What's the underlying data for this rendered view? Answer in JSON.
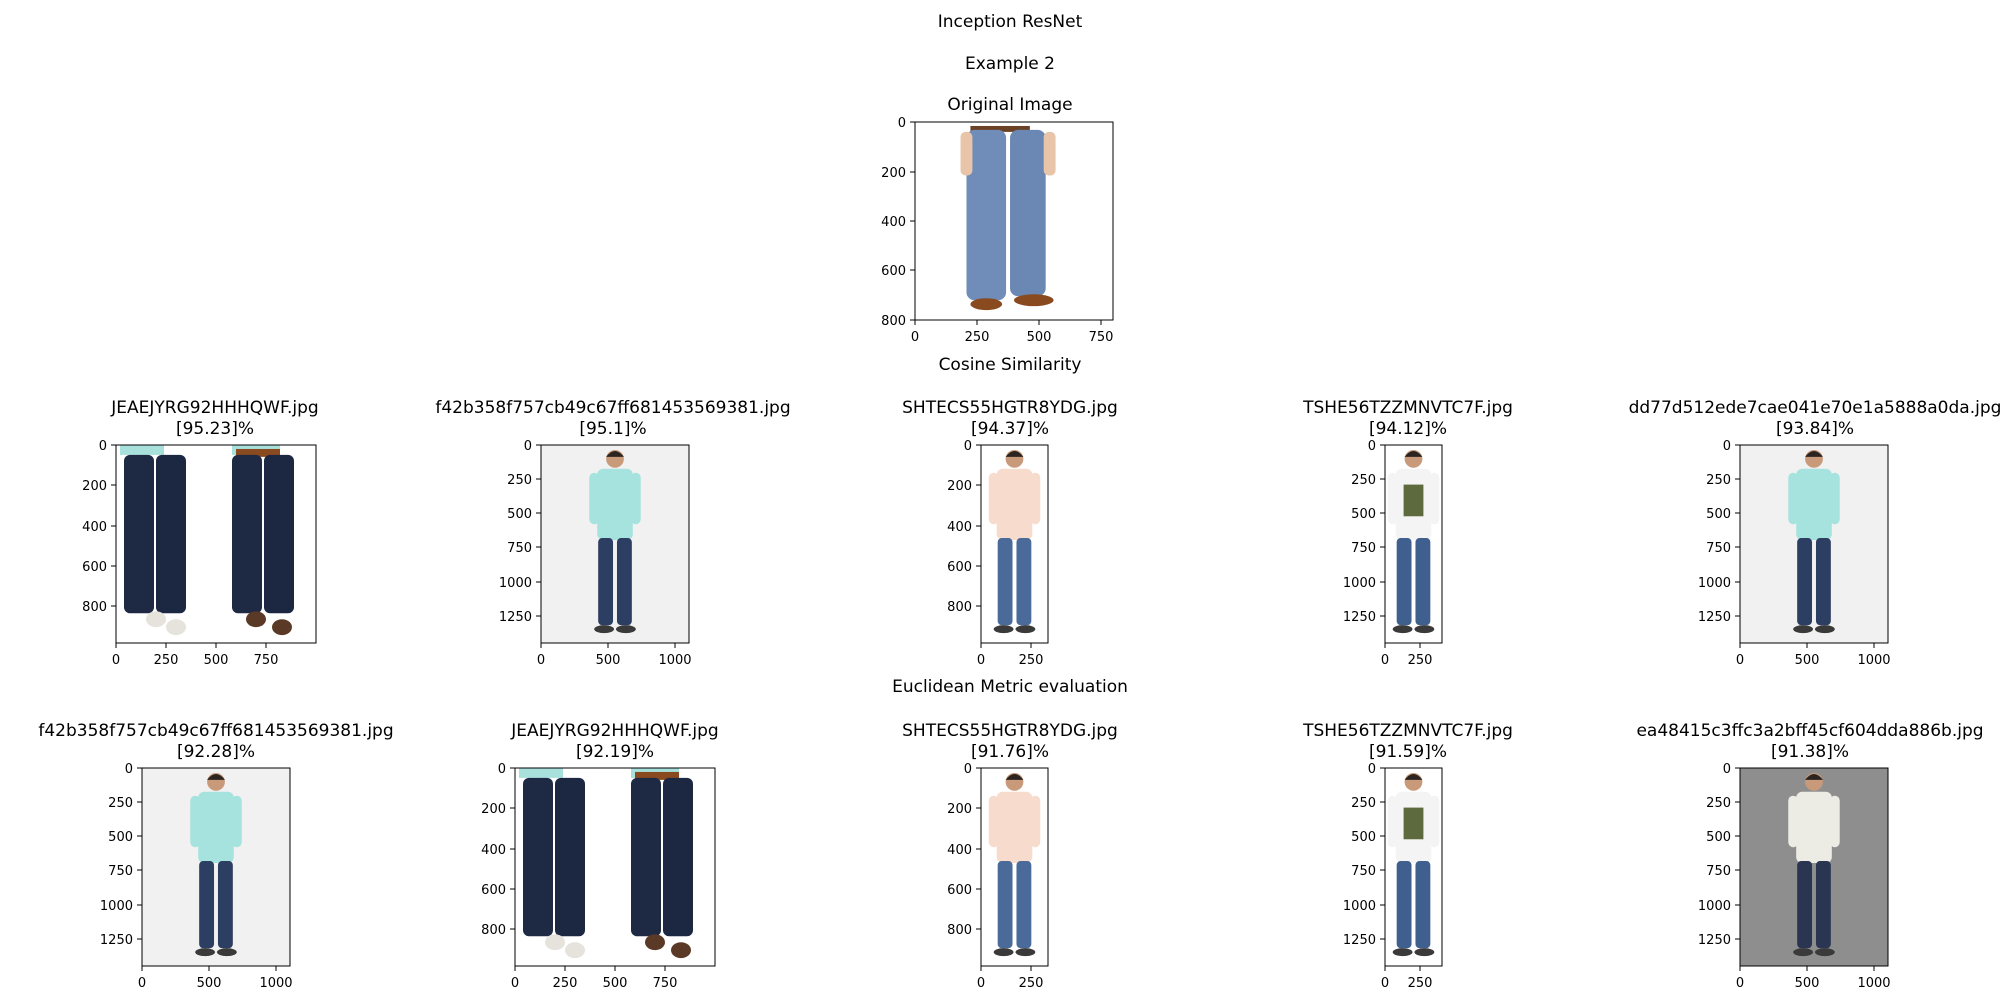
{
  "figure": {
    "suptitle": "Inception ResNet",
    "example_label": "Example 2",
    "cosine_label": "Cosine Similarity",
    "euclidean_label": "Euclidean Metric evaluation"
  },
  "original": {
    "title": "Original Image",
    "xticks": [
      "0",
      "250",
      "500",
      "750"
    ],
    "yticks": [
      "0",
      "200",
      "400",
      "600",
      "800"
    ],
    "picture": "person-blue-trousers-brown-shoes"
  },
  "cosine_results": [
    {
      "file": "JEAEJYRG92HHHQWF.jpg",
      "score": "[95.23]%",
      "xticks": [
        "0",
        "250",
        "500",
        "750"
      ],
      "yticks": [
        "0",
        "200",
        "400",
        "600",
        "800"
      ],
      "picture": "two-people-dark-jeans"
    },
    {
      "file": "f42b358f757cb49c67ff681453569381.jpg",
      "score": "[95.1]%",
      "xticks": [
        "0",
        "500",
        "1000"
      ],
      "yticks": [
        "0",
        "250",
        "500",
        "750",
        "1000",
        "1250"
      ],
      "picture": "man-mint-shirt-jeans"
    },
    {
      "file": "SHTECS55HGTR8YDG.jpg",
      "score": "[94.37]%",
      "xticks": [
        "0",
        "250"
      ],
      "yticks": [
        "0",
        "200",
        "400",
        "600",
        "800"
      ],
      "picture": "man-peach-shirt-jeans"
    },
    {
      "file": "TSHE56TZZMNVTC7F.jpg",
      "score": "[94.12]%",
      "xticks": [
        "0",
        "250"
      ],
      "yticks": [
        "0",
        "250",
        "500",
        "750",
        "1000",
        "1250"
      ],
      "picture": "man-white-graphic-tshirt-jeans"
    },
    {
      "file": "dd77d512ede7cae041e70e1a5888a0da.jpg",
      "score": "[93.84]%",
      "xticks": [
        "0",
        "500",
        "1000"
      ],
      "yticks": [
        "0",
        "250",
        "500",
        "750",
        "1000",
        "1250"
      ],
      "picture": "man-mint-shirt-jeans"
    }
  ],
  "euclidean_results": [
    {
      "file": "f42b358f757cb49c67ff681453569381.jpg",
      "score": "[92.28]%",
      "xticks": [
        "0",
        "500",
        "1000"
      ],
      "yticks": [
        "0",
        "250",
        "500",
        "750",
        "1000",
        "1250"
      ],
      "picture": "man-mint-shirt-jeans"
    },
    {
      "file": "JEAEJYRG92HHHQWF.jpg",
      "score": "[92.19]%",
      "xticks": [
        "0",
        "250",
        "500",
        "750"
      ],
      "yticks": [
        "0",
        "200",
        "400",
        "600",
        "800"
      ],
      "picture": "two-people-dark-jeans"
    },
    {
      "file": "SHTECS55HGTR8YDG.jpg",
      "score": "[91.76]%",
      "xticks": [
        "0",
        "250"
      ],
      "yticks": [
        "0",
        "200",
        "400",
        "600",
        "800"
      ],
      "picture": "man-peach-shirt-jeans"
    },
    {
      "file": "TSHE56TZZMNVTC7F.jpg",
      "score": "[91.59]%",
      "xticks": [
        "0",
        "250"
      ],
      "yticks": [
        "0",
        "250",
        "500",
        "750",
        "1000",
        "1250"
      ],
      "picture": "man-white-graphic-tshirt-jeans"
    },
    {
      "file": "ea48415c3ffc3a2bff45cf604dda886b.jpg",
      "score": "[91.38]%",
      "xticks": [
        "0",
        "500",
        "1000"
      ],
      "yticks": [
        "0",
        "250",
        "500",
        "750",
        "1000",
        "1250"
      ],
      "picture": "man-white-shirt-jeans-grey-backdrop"
    }
  ]
}
